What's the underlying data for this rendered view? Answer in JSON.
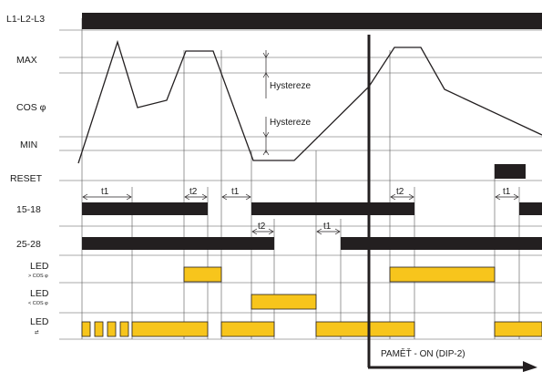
{
  "rows": {
    "l1l2l3": "L1-L2-L3",
    "max": "MAX",
    "cos": "COS φ",
    "min": "MIN",
    "reset": "RESET",
    "relay1": "15-18",
    "relay2": "25-28",
    "led_upper": "LED",
    "led_upper_sub": "> COS φ",
    "led_lower": "LED",
    "led_lower_sub": "< COS φ",
    "led_power": "LED",
    "led_power_sub": "⇄"
  },
  "annotations": {
    "hyst1": "Hystereze",
    "hyst2": "Hystereze",
    "memory": "PAMĚŤ - ON (DIP-2)"
  },
  "timers": {
    "a": "t1",
    "b": "t2",
    "c": "t1",
    "d": "t2",
    "e": "t1",
    "f": "t2",
    "g": "t1"
  },
  "colors": {
    "bar": "#231f20",
    "led": "#f7c51c"
  }
}
